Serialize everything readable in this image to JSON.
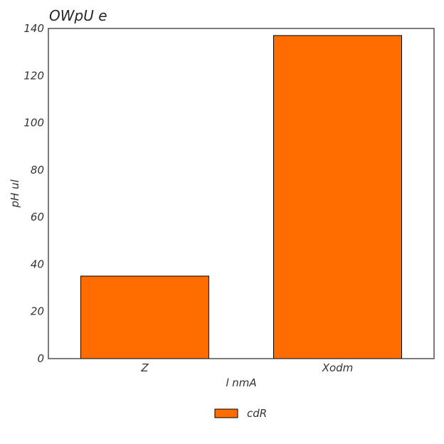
{
  "chart_data": {
    "type": "bar",
    "title": "OWpU e",
    "xlabel": "l nmA",
    "ylabel": "pH ul",
    "categories": [
      "Z",
      "Xodm"
    ],
    "series": [
      {
        "name": "cdR",
        "values": [
          35,
          137
        ],
        "color": "#ff6d00"
      }
    ],
    "ylim": [
      0,
      140
    ],
    "yticks": [
      0,
      20,
      40,
      60,
      80,
      100,
      120,
      140
    ],
    "grid": false,
    "legend_position": "bottom-center",
    "edge_color": "#000000"
  }
}
